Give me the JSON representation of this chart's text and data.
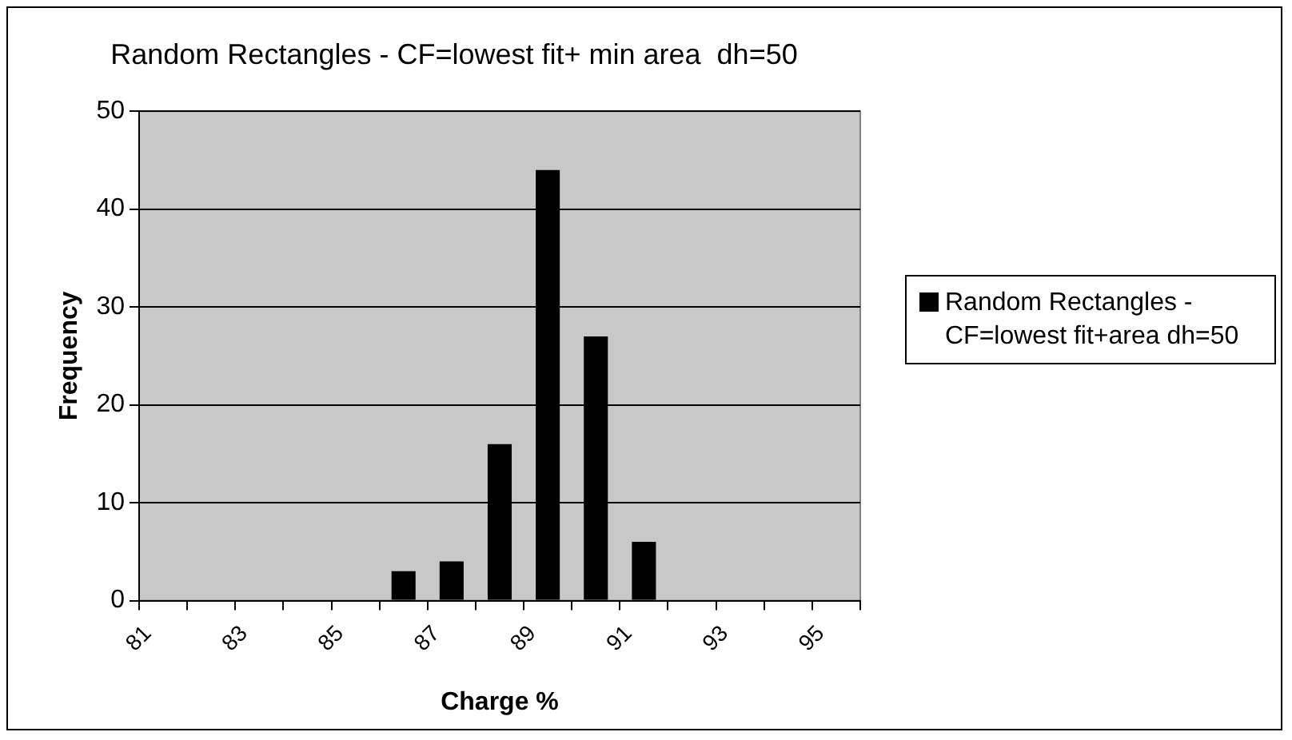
{
  "chart_data": {
    "type": "histogram",
    "title": "Random Rectangles - CF=lowest fit+ min area  dh=50",
    "xlabel": "Charge %",
    "ylabel": "Frequency",
    "bins": [
      81,
      82,
      83,
      84,
      85,
      86,
      87,
      88,
      89,
      90,
      91,
      92,
      93,
      94,
      95,
      96
    ],
    "series": [
      {
        "name": "Random Rectangles - CF=lowest fit+area dh=50",
        "color": "#000000",
        "values": [
          0,
          0,
          0,
          0,
          0,
          3,
          4,
          16,
          44,
          27,
          6,
          0,
          0,
          0,
          0
        ]
      }
    ],
    "xlim": [
      81,
      96
    ],
    "xticks": [
      81,
      {
        "value": 82,
        "label": null
      },
      83,
      {
        "value": 84,
        "label": null
      },
      85,
      {
        "value": 86,
        "label": null
      },
      87,
      {
        "value": 88,
        "label": null
      },
      89,
      {
        "value": 90,
        "label": null
      },
      91,
      {
        "value": 92,
        "label": null
      },
      93,
      {
        "value": 94,
        "label": null
      },
      95,
      {
        "value": 96,
        "label": null
      }
    ],
    "ylim": [
      0,
      50
    ],
    "yticks": [
      0,
      10,
      20,
      30,
      40,
      50
    ],
    "grid": "y",
    "legend": "right"
  }
}
